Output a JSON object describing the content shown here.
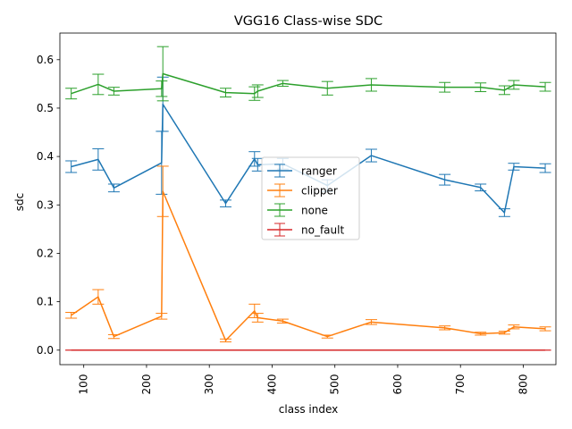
{
  "chart_data": {
    "type": "line",
    "title": "VGG16 Class-wise SDC",
    "xlabel": "class index",
    "ylabel": "sdc",
    "xlim": [
      62,
      852
    ],
    "ylim": [
      -0.03,
      0.655
    ],
    "xticks": [
      100,
      200,
      300,
      400,
      500,
      600,
      700,
      800
    ],
    "yticks": [
      0.0,
      0.1,
      0.2,
      0.3,
      0.4,
      0.5,
      0.6
    ],
    "xtick_labels": [
      "100",
      "200",
      "300",
      "400",
      "500",
      "600",
      "700",
      "800"
    ],
    "ytick_labels": [
      "0.0",
      "0.1",
      "0.2",
      "0.3",
      "0.4",
      "0.5",
      "0.6"
    ],
    "x_tick_rotation": "vertical",
    "grid": false,
    "legend_position": "center",
    "error_bars": true,
    "x": [
      80,
      123,
      148,
      224,
      226,
      326,
      372,
      377,
      417,
      488,
      558,
      675,
      732,
      770,
      785,
      835
    ],
    "series": [
      {
        "name": "ranger",
        "color": "#1f77b4",
        "values": [
          0.379,
          0.394,
          0.335,
          0.387,
          0.508,
          0.303,
          0.395,
          0.383,
          0.385,
          0.34,
          0.402,
          0.352,
          0.336,
          0.284,
          0.379,
          0.376
        ],
        "errors": [
          0.012,
          0.022,
          0.008,
          0.065,
          0.056,
          0.007,
          0.015,
          0.013,
          0.011,
          0.012,
          0.013,
          0.011,
          0.007,
          0.008,
          0.007,
          0.009
        ]
      },
      {
        "name": "clipper",
        "color": "#ff7f0e",
        "values": [
          0.072,
          0.11,
          0.028,
          0.07,
          0.328,
          0.02,
          0.081,
          0.067,
          0.06,
          0.028,
          0.058,
          0.046,
          0.034,
          0.036,
          0.048,
          0.044
        ],
        "errors": [
          0.006,
          0.015,
          0.004,
          0.006,
          0.052,
          0.003,
          0.014,
          0.009,
          0.004,
          0.003,
          0.005,
          0.004,
          0.003,
          0.003,
          0.004,
          0.004
        ]
      },
      {
        "name": "none",
        "color": "#2ca02c",
        "values": [
          0.53,
          0.549,
          0.535,
          0.54,
          0.571,
          0.532,
          0.53,
          0.535,
          0.551,
          0.541,
          0.548,
          0.543,
          0.543,
          0.537,
          0.548,
          0.544
        ],
        "errors": [
          0.011,
          0.021,
          0.008,
          0.016,
          0.056,
          0.009,
          0.014,
          0.013,
          0.006,
          0.014,
          0.013,
          0.01,
          0.009,
          0.009,
          0.009,
          0.009
        ]
      },
      {
        "name": "no_fault",
        "color": "#d62728",
        "values": [
          0.0,
          0.0,
          0.0,
          0.0,
          0.0,
          0.0,
          0.0,
          0.0,
          0.0,
          0.0,
          0.0,
          0.0,
          0.0,
          0.0,
          0.0,
          0.0
        ],
        "errors": [
          0.0,
          0.0,
          0.0,
          0.0,
          0.0,
          0.0,
          0.0,
          0.0,
          0.0,
          0.0,
          0.0,
          0.0,
          0.0,
          0.0,
          0.0,
          0.0
        ]
      }
    ]
  }
}
